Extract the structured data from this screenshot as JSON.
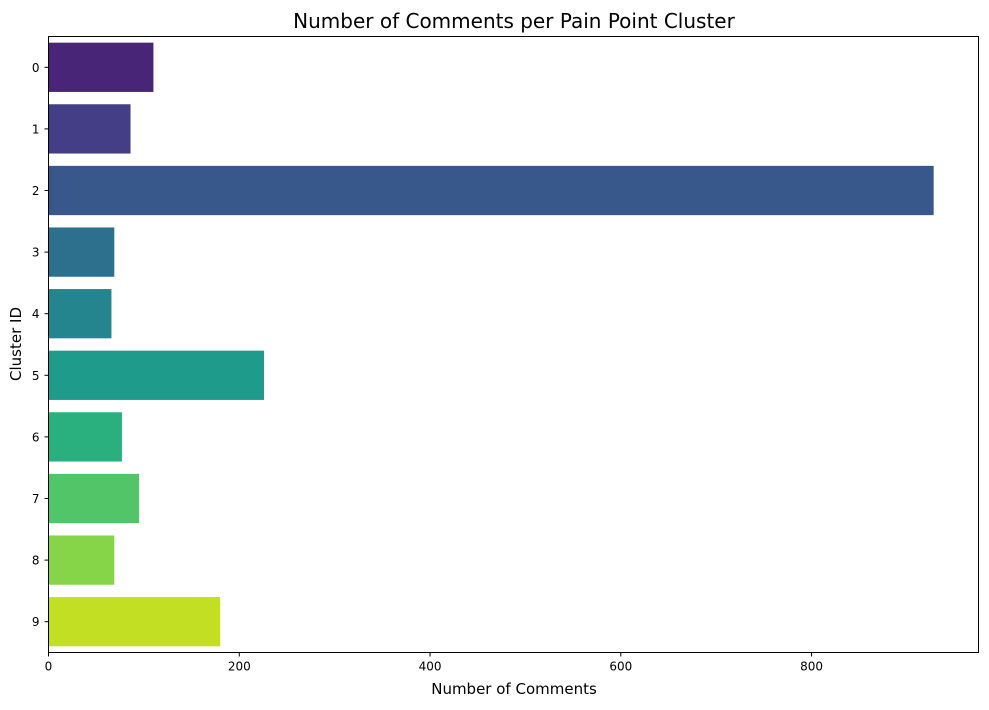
{
  "chart_data": {
    "type": "bar",
    "orientation": "horizontal",
    "title": "Number of Comments per Pain Point Cluster",
    "xlabel": "Number of Comments",
    "ylabel": "Cluster ID",
    "categories": [
      "0",
      "1",
      "2",
      "3",
      "4",
      "5",
      "6",
      "7",
      "8",
      "9"
    ],
    "values": [
      110,
      86,
      928,
      69,
      66,
      226,
      77,
      95,
      69,
      180
    ],
    "colors": [
      "#482576",
      "#433e85",
      "#38588c",
      "#2d708e",
      "#25858e",
      "#1e9b8a",
      "#2ab07f",
      "#52c569",
      "#86d549",
      "#c2df23"
    ],
    "xlim": [
      0,
      975
    ],
    "xticks": [
      0,
      200,
      400,
      600,
      800
    ],
    "grid": false,
    "legend": "none"
  }
}
